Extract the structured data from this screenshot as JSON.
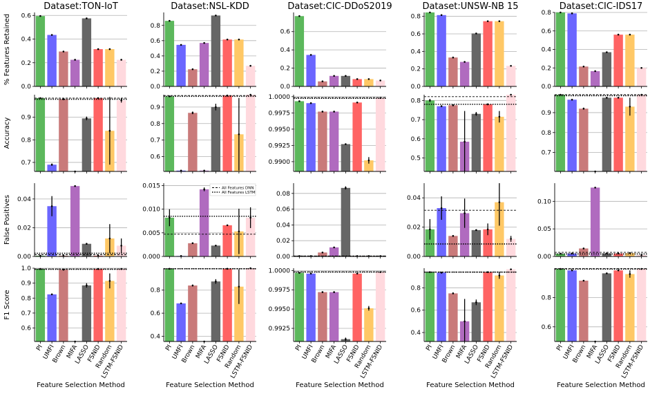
{
  "methods": [
    "PI",
    "UMFI",
    "Brown",
    "MIFA",
    "LASSO",
    "FSNID",
    "Random",
    "LSTM-FSNID"
  ],
  "colors": [
    "#5cb85c",
    "#6b66ff",
    "#c97a7a",
    "#b06bbf",
    "#666666",
    "#ff6363",
    "#ffc866",
    "#ffd9de"
  ],
  "xlabel": "Feature Selection Method",
  "legend": {
    "dnn": "All Features DNN",
    "lstm": "All Features LSTM",
    "row": 2,
    "col": 1
  },
  "chart_data": [
    {
      "type": "bar",
      "row": 0,
      "col": 0,
      "title": "Dataset:TON-IoT",
      "ylabel": "% Features Retained",
      "ylim": [
        0,
        0.625
      ],
      "yticks": [
        "0.0",
        "0.2",
        "0.4",
        "0.6"
      ],
      "yticks_v": [
        0,
        0.2,
        0.4,
        0.6
      ],
      "values": [
        0.595,
        0.435,
        0.295,
        0.225,
        0.575,
        0.315,
        0.315,
        0.225
      ],
      "errors": [
        0,
        0,
        0,
        0,
        0,
        0,
        0,
        0
      ]
    },
    {
      "type": "bar",
      "row": 0,
      "col": 1,
      "title": "Dataset:NSL-KDD",
      "ylabel": "",
      "ylim": [
        0,
        0.97
      ],
      "yticks": [
        "0.0",
        "0.2",
        "0.4",
        "0.6",
        "0.8"
      ],
      "yticks_v": [
        0,
        0.2,
        0.4,
        0.6,
        0.8
      ],
      "values": [
        0.86,
        0.545,
        0.225,
        0.57,
        0.93,
        0.615,
        0.615,
        0.27
      ],
      "errors": [
        0,
        0,
        0,
        0,
        0,
        0,
        0,
        0
      ]
    },
    {
      "type": "bar",
      "row": 0,
      "col": 2,
      "title": "Dataset:CIC-DDoS2019",
      "ylabel": "",
      "ylim": [
        0,
        0.81
      ],
      "yticks": [
        "0.0",
        "0.2",
        "0.4",
        "0.6"
      ],
      "yticks_v": [
        0,
        0.2,
        0.4,
        0.6
      ],
      "values": [
        0.77,
        0.345,
        0.055,
        0.115,
        0.115,
        0.08,
        0.08,
        0.065
      ],
      "errors": [
        0,
        0,
        0,
        0,
        0,
        0,
        0,
        0
      ]
    },
    {
      "type": "bar",
      "row": 0,
      "col": 3,
      "title": "Dataset:UNSW-NB 15",
      "ylabel": "",
      "ylim": [
        0,
        0.845
      ],
      "yticks": [
        "0.0",
        "0.2",
        "0.4",
        "0.6",
        "0.8"
      ],
      "yticks_v": [
        0,
        0.2,
        0.4,
        0.6,
        0.8
      ],
      "values": [
        0.845,
        0.815,
        0.33,
        0.28,
        0.605,
        0.745,
        0.745,
        0.235
      ],
      "errors": [
        0,
        0,
        0,
        0,
        0,
        0,
        0,
        0
      ]
    },
    {
      "type": "bar",
      "row": 0,
      "col": 4,
      "title": "Dataset:CIC-IDS17",
      "ylabel": "",
      "ylim": [
        0,
        0.8
      ],
      "yticks": [
        "0.0",
        "0.2",
        "0.4",
        "0.6",
        "0.8"
      ],
      "yticks_v": [
        0,
        0.2,
        0.4,
        0.6,
        0.8
      ],
      "values": [
        0.8,
        0.79,
        0.215,
        0.165,
        0.37,
        0.56,
        0.56,
        0.2
      ],
      "errors": [
        0,
        0,
        0,
        0,
        0,
        0,
        0,
        0
      ]
    },
    {
      "type": "bar",
      "row": 1,
      "col": 0,
      "title": "",
      "ylabel": "Accuracy",
      "ylim": [
        0.66,
        1.0
      ],
      "yticks": [
        "0.7",
        "0.8",
        "0.9"
      ],
      "yticks_v": [
        0.7,
        0.8,
        0.9
      ],
      "values": [
        0.985,
        0.69,
        0.98,
        0.66,
        0.895,
        0.985,
        0.84,
        0.975
      ],
      "errors": [
        0,
        0.005,
        0.003,
        0,
        0.008,
        0,
        0.15,
        0.01
      ],
      "hline_dnn": 0.985,
      "hline_lstm": 0.98
    },
    {
      "type": "bar",
      "row": 1,
      "col": 1,
      "title": "",
      "ylabel": "",
      "ylim": [
        0.51,
        0.975
      ],
      "yticks": [
        "0.6",
        "0.7",
        "0.8",
        "0.9"
      ],
      "yticks_v": [
        0.6,
        0.7,
        0.8,
        0.9
      ],
      "values": [
        0.965,
        0.515,
        0.865,
        0.515,
        0.9,
        0.97,
        0.735,
        0.975
      ],
      "errors": [
        0.003,
        0,
        0.008,
        0,
        0.02,
        0,
        0.22,
        0.003
      ],
      "hline_dnn": 0.97,
      "hline_lstm": 0.965
    },
    {
      "type": "bar",
      "row": 1,
      "col": 2,
      "title": "",
      "ylabel": "",
      "ylim": [
        0.9885,
        1.0003
      ],
      "yticks": [
        "0.9900",
        "0.9925",
        "0.9950",
        "0.9975",
        "1.0000"
      ],
      "yticks_v": [
        0.99,
        0.9925,
        0.995,
        0.9975,
        1.0
      ],
      "values": [
        0.9993,
        0.999,
        0.9977,
        0.9977,
        0.9927,
        0.9991,
        0.9902,
        0.9998
      ],
      "errors": [
        0,
        5e-05,
        0,
        0.0001,
        0,
        0,
        0.0005,
        0
      ],
      "hline_dnn": 0.99985,
      "hline_lstm": 0.99975
    },
    {
      "type": "bar",
      "row": 1,
      "col": 3,
      "title": "",
      "ylabel": "",
      "ylim": [
        0.43,
        0.83
      ],
      "yticks": [
        "0.5",
        "0.6",
        "0.7",
        "0.8"
      ],
      "yticks_v": [
        0.5,
        0.6,
        0.7,
        0.8
      ],
      "values": [
        0.8,
        0.77,
        0.775,
        0.585,
        0.73,
        0.78,
        0.715,
        0.83
      ],
      "errors": [
        0.008,
        0.005,
        0.005,
        0.16,
        0.01,
        0.005,
        0.03,
        0
      ],
      "hline_dnn": 0.82,
      "hline_lstm": 0.78
    },
    {
      "type": "bar",
      "row": 1,
      "col": 4,
      "title": "",
      "ylabel": "",
      "ylim": [
        0.605,
        0.99
      ],
      "yticks": [
        "0.7",
        "0.8",
        "0.9"
      ],
      "yticks_v": [
        0.7,
        0.8,
        0.9
      ],
      "values": [
        0.99,
        0.965,
        0.92,
        0.605,
        0.975,
        0.975,
        0.93,
        0.99
      ],
      "errors": [
        0,
        0.003,
        0.005,
        0,
        0.003,
        0,
        0.045,
        0
      ],
      "hline_dnn": 0.99,
      "hline_lstm": 0.985
    },
    {
      "type": "bar",
      "row": 2,
      "col": 0,
      "title": "",
      "ylabel": "False Positives",
      "ylim": [
        0,
        0.051
      ],
      "yticks": [
        "0.00",
        "0.02",
        "0.04"
      ],
      "yticks_v": [
        0,
        0.02,
        0.04
      ],
      "values": [
        0.0005,
        0.035,
        0.0005,
        0.049,
        0.0088,
        0.0005,
        0.0125,
        0.0075
      ],
      "errors": [
        0,
        0.007,
        0,
        0.0005,
        0.0005,
        0,
        0.01,
        0.005
      ],
      "hline_dnn": 0.0012,
      "hline_lstm": 0.0022
    },
    {
      "type": "bar",
      "row": 2,
      "col": 1,
      "title": "",
      "ylabel": "",
      "ylim": [
        0,
        0.0155
      ],
      "yticks": [
        "0.000",
        "0.005",
        "0.010",
        "0.015"
      ],
      "yticks_v": [
        0,
        0.005,
        0.01,
        0.015
      ],
      "values": [
        0.0082,
        0.0001,
        0.0028,
        0.0142,
        0.0023,
        0.0066,
        0.0053,
        0.0082
      ],
      "errors": [
        0.0018,
        0,
        0.0001,
        0.0004,
        0.0001,
        0.0001,
        0.0048,
        0.0022
      ],
      "hline_dnn": 0.0047,
      "hline_lstm": 0.0085
    },
    {
      "type": "bar",
      "row": 2,
      "col": 2,
      "title": "",
      "ylabel": "",
      "ylim": [
        0,
        0.093
      ],
      "yticks": [
        "0.00",
        "0.02",
        "0.04",
        "0.06",
        "0.08"
      ],
      "yticks_v": [
        0,
        0.02,
        0.04,
        0.06,
        0.08
      ],
      "values": [
        0.0005,
        0.0005,
        0.005,
        0.0115,
        0.087,
        0.0005,
        0.0005,
        0.0005
      ],
      "errors": [
        0,
        0,
        0,
        0.0005,
        0.002,
        0,
        0,
        0
      ],
      "hline_dnn": 0.0006,
      "hline_lstm": 0.0003
    },
    {
      "type": "bar",
      "row": 2,
      "col": 3,
      "title": "",
      "ylabel": "",
      "ylim": [
        0,
        0.05
      ],
      "yticks": [
        "0.00",
        "0.02",
        "0.04"
      ],
      "yticks_v": [
        0,
        0.02,
        0.04
      ],
      "values": [
        0.0185,
        0.033,
        0.014,
        0.0295,
        0.018,
        0.0185,
        0.037,
        0.012
      ],
      "errors": [
        0.007,
        0.008,
        0.0005,
        0.01,
        0.0005,
        0.004,
        0.016,
        0.002
      ],
      "hline_dnn": 0.0315,
      "hline_lstm": 0.0085
    },
    {
      "type": "bar",
      "row": 2,
      "col": 4,
      "title": "",
      "ylabel": "",
      "ylim": [
        0,
        0.133
      ],
      "yticks": [
        "0.00",
        "0.05",
        "0.10"
      ],
      "yticks_v": [
        0,
        0.05,
        0.1
      ],
      "values": [
        0.005,
        0.0055,
        0.0145,
        0.125,
        0.0055,
        0.0055,
        0.006,
        0.0025
      ],
      "errors": [
        0,
        0,
        0.0005,
        0.001,
        0,
        0,
        0,
        0
      ],
      "hline_dnn": 0.0075,
      "hline_lstm": 0.0045
    },
    {
      "type": "bar",
      "row": 3,
      "col": 0,
      "title": "",
      "ylabel": "F1 Score",
      "ylim": [
        0.51,
        1.0
      ],
      "yticks": [
        "0.6",
        "0.7",
        "0.8",
        "0.9",
        "1.0"
      ],
      "yticks_v": [
        0.6,
        0.7,
        0.8,
        0.9,
        1.0
      ],
      "values": [
        0.995,
        0.825,
        0.99,
        0.51,
        0.885,
        0.995,
        0.915,
        0.995
      ],
      "errors": [
        0,
        0.003,
        0.003,
        0,
        0.015,
        0,
        0.05,
        0.003
      ],
      "hline_dnn": 0.995,
      "hline_lstm": 0.993
    },
    {
      "type": "bar",
      "row": 3,
      "col": 1,
      "title": "",
      "ylabel": "",
      "ylim": [
        0.355,
        0.99
      ],
      "yticks": [
        "0.4",
        "0.6",
        "0.8"
      ],
      "yticks_v": [
        0.4,
        0.6,
        0.8
      ],
      "values": [
        0.985,
        0.685,
        0.84,
        0.355,
        0.875,
        0.985,
        0.83,
        0.99
      ],
      "errors": [
        0,
        0.003,
        0.008,
        0,
        0.02,
        0,
        0.15,
        0
      ],
      "hline_dnn": 0.985,
      "hline_lstm": 0.985
    },
    {
      "type": "bar",
      "row": 3,
      "col": 2,
      "title": "",
      "ylabel": "",
      "ylim": [
        0.9908,
        1.0003
      ],
      "yticks": [
        "0.9925",
        "0.9950",
        "0.9975",
        "1.0000"
      ],
      "yticks_v": [
        0.9925,
        0.995,
        0.9975,
        1.0
      ],
      "values": [
        0.9997,
        0.9996,
        0.9972,
        0.9972,
        0.9911,
        0.9996,
        0.9951,
        0.9998
      ],
      "errors": [
        0,
        0,
        0,
        0.0001,
        0.0002,
        0,
        0.0003,
        0
      ],
      "hline_dnn": 0.99985,
      "hline_lstm": 0.9998
    },
    {
      "type": "bar",
      "row": 3,
      "col": 3,
      "title": "",
      "ylabel": "",
      "ylim": [
        0.32,
        0.975
      ],
      "yticks": [
        "0.4",
        "0.6",
        "0.8"
      ],
      "yticks_v": [
        0.4,
        0.6,
        0.8
      ],
      "values": [
        0.94,
        0.935,
        0.75,
        0.5,
        0.67,
        0.94,
        0.91,
        0.965
      ],
      "errors": [
        0.003,
        0.003,
        0.008,
        0.2,
        0.025,
        0,
        0.03,
        0
      ],
      "hline_dnn": 0.94,
      "hline_lstm": 0.94
    },
    {
      "type": "bar",
      "row": 3,
      "col": 4,
      "title": "",
      "ylabel": "",
      "ylim": [
        0.5,
        1.0
      ],
      "yticks": [
        "0.6",
        "0.8"
      ],
      "yticks_v": [
        0.6,
        0.8
      ],
      "values": [
        0.995,
        0.985,
        0.915,
        0.5,
        0.965,
        0.985,
        0.96,
        0.995
      ],
      "errors": [
        0,
        0.003,
        0.003,
        0,
        0.003,
        0,
        0.025,
        0
      ],
      "hline_dnn": 0.997,
      "hline_lstm": 0.994
    }
  ]
}
